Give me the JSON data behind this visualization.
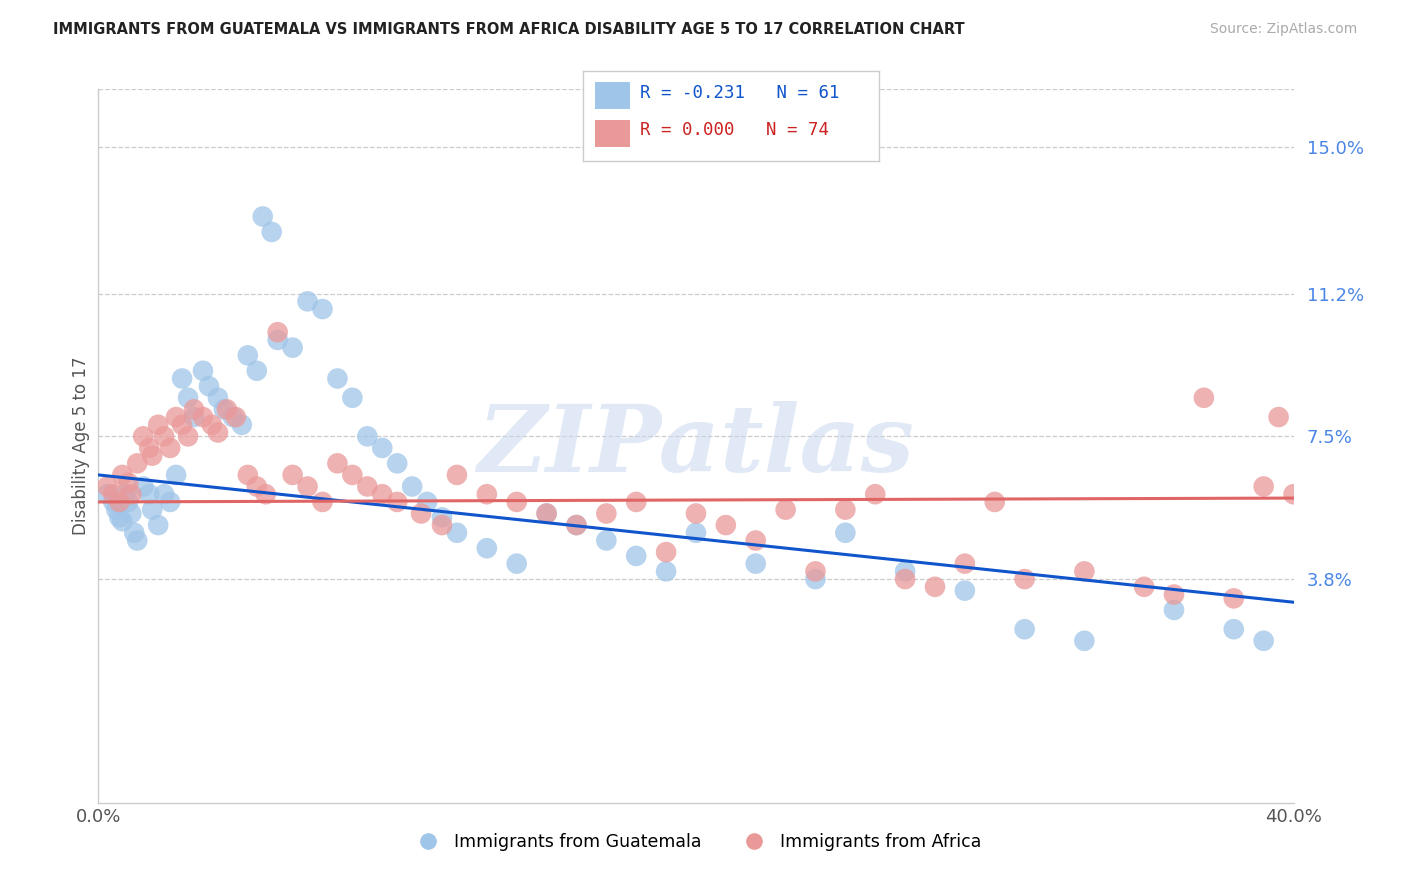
{
  "title": "IMMIGRANTS FROM GUATEMALA VS IMMIGRANTS FROM AFRICA DISABILITY AGE 5 TO 17 CORRELATION CHART",
  "source": "Source: ZipAtlas.com",
  "ylabel": "Disability Age 5 to 17",
  "xlim": [
    0.0,
    0.4
  ],
  "ylim": [
    -0.02,
    0.165
  ],
  "xtick_positions": [
    0.0,
    0.05,
    0.1,
    0.15,
    0.2,
    0.25,
    0.3,
    0.35,
    0.4
  ],
  "xtick_labels": [
    "0.0%",
    "",
    "",
    "",
    "",
    "",
    "",
    "",
    "40.0%"
  ],
  "yticks_right": [
    0.038,
    0.075,
    0.112,
    0.15
  ],
  "ytick_right_labels": [
    "3.8%",
    "7.5%",
    "11.2%",
    "15.0%"
  ],
  "legend_line1": "R = -0.231   N = 61",
  "legend_line2": "R = 0.000   N = 74",
  "legend_label_blue": "Immigrants from Guatemala",
  "legend_label_pink": "Immigrants from Africa",
  "color_blue": "#9fc5e8",
  "color_pink": "#ea9999",
  "color_trendline_blue": "#1155cc",
  "color_trendline_pink": "#e06666",
  "color_title": "#222222",
  "color_right_labels": "#4a86e8",
  "color_legend_text": "#1155cc",
  "color_source": "#aaaaaa",
  "background_color": "#ffffff",
  "grid_color": "#cccccc",
  "blue_trend_x0": 0.0,
  "blue_trend_y0": 0.065,
  "blue_trend_x1": 0.4,
  "blue_trend_y1": 0.032,
  "pink_trend_x0": 0.0,
  "pink_trend_y0": 0.058,
  "pink_trend_x1": 0.4,
  "pink_trend_y1": 0.059,
  "blue_x": [
    0.003,
    0.005,
    0.006,
    0.007,
    0.008,
    0.009,
    0.01,
    0.011,
    0.012,
    0.013,
    0.015,
    0.017,
    0.018,
    0.02,
    0.022,
    0.024,
    0.026,
    0.028,
    0.03,
    0.032,
    0.035,
    0.037,
    0.04,
    0.042,
    0.045,
    0.048,
    0.05,
    0.053,
    0.055,
    0.058,
    0.06,
    0.065,
    0.07,
    0.075,
    0.08,
    0.085,
    0.09,
    0.095,
    0.1,
    0.105,
    0.11,
    0.115,
    0.12,
    0.13,
    0.14,
    0.15,
    0.16,
    0.17,
    0.18,
    0.19,
    0.2,
    0.22,
    0.24,
    0.25,
    0.27,
    0.29,
    0.31,
    0.33,
    0.36,
    0.38,
    0.39
  ],
  "blue_y": [
    0.06,
    0.058,
    0.056,
    0.054,
    0.053,
    0.06,
    0.058,
    0.055,
    0.05,
    0.048,
    0.062,
    0.06,
    0.056,
    0.052,
    0.06,
    0.058,
    0.065,
    0.09,
    0.085,
    0.08,
    0.092,
    0.088,
    0.085,
    0.082,
    0.08,
    0.078,
    0.096,
    0.092,
    0.132,
    0.128,
    0.1,
    0.098,
    0.11,
    0.108,
    0.09,
    0.085,
    0.075,
    0.072,
    0.068,
    0.062,
    0.058,
    0.054,
    0.05,
    0.046,
    0.042,
    0.055,
    0.052,
    0.048,
    0.044,
    0.04,
    0.05,
    0.042,
    0.038,
    0.05,
    0.04,
    0.035,
    0.025,
    0.022,
    0.03,
    0.025,
    0.022
  ],
  "pink_x": [
    0.003,
    0.005,
    0.007,
    0.008,
    0.01,
    0.011,
    0.013,
    0.015,
    0.017,
    0.018,
    0.02,
    0.022,
    0.024,
    0.026,
    0.028,
    0.03,
    0.032,
    0.035,
    0.038,
    0.04,
    0.043,
    0.046,
    0.05,
    0.053,
    0.056,
    0.06,
    0.065,
    0.07,
    0.075,
    0.08,
    0.085,
    0.09,
    0.095,
    0.1,
    0.108,
    0.115,
    0.12,
    0.13,
    0.14,
    0.15,
    0.16,
    0.17,
    0.18,
    0.19,
    0.2,
    0.21,
    0.22,
    0.23,
    0.24,
    0.25,
    0.26,
    0.27,
    0.28,
    0.29,
    0.3,
    0.31,
    0.33,
    0.35,
    0.36,
    0.37,
    0.38,
    0.39,
    0.395,
    0.4
  ],
  "pink_y": [
    0.062,
    0.06,
    0.058,
    0.065,
    0.063,
    0.06,
    0.068,
    0.075,
    0.072,
    0.07,
    0.078,
    0.075,
    0.072,
    0.08,
    0.078,
    0.075,
    0.082,
    0.08,
    0.078,
    0.076,
    0.082,
    0.08,
    0.065,
    0.062,
    0.06,
    0.102,
    0.065,
    0.062,
    0.058,
    0.068,
    0.065,
    0.062,
    0.06,
    0.058,
    0.055,
    0.052,
    0.065,
    0.06,
    0.058,
    0.055,
    0.052,
    0.055,
    0.058,
    0.045,
    0.055,
    0.052,
    0.048,
    0.056,
    0.04,
    0.056,
    0.06,
    0.038,
    0.036,
    0.042,
    0.058,
    0.038,
    0.04,
    0.036,
    0.034,
    0.085,
    0.033,
    0.062,
    0.08,
    0.06
  ]
}
